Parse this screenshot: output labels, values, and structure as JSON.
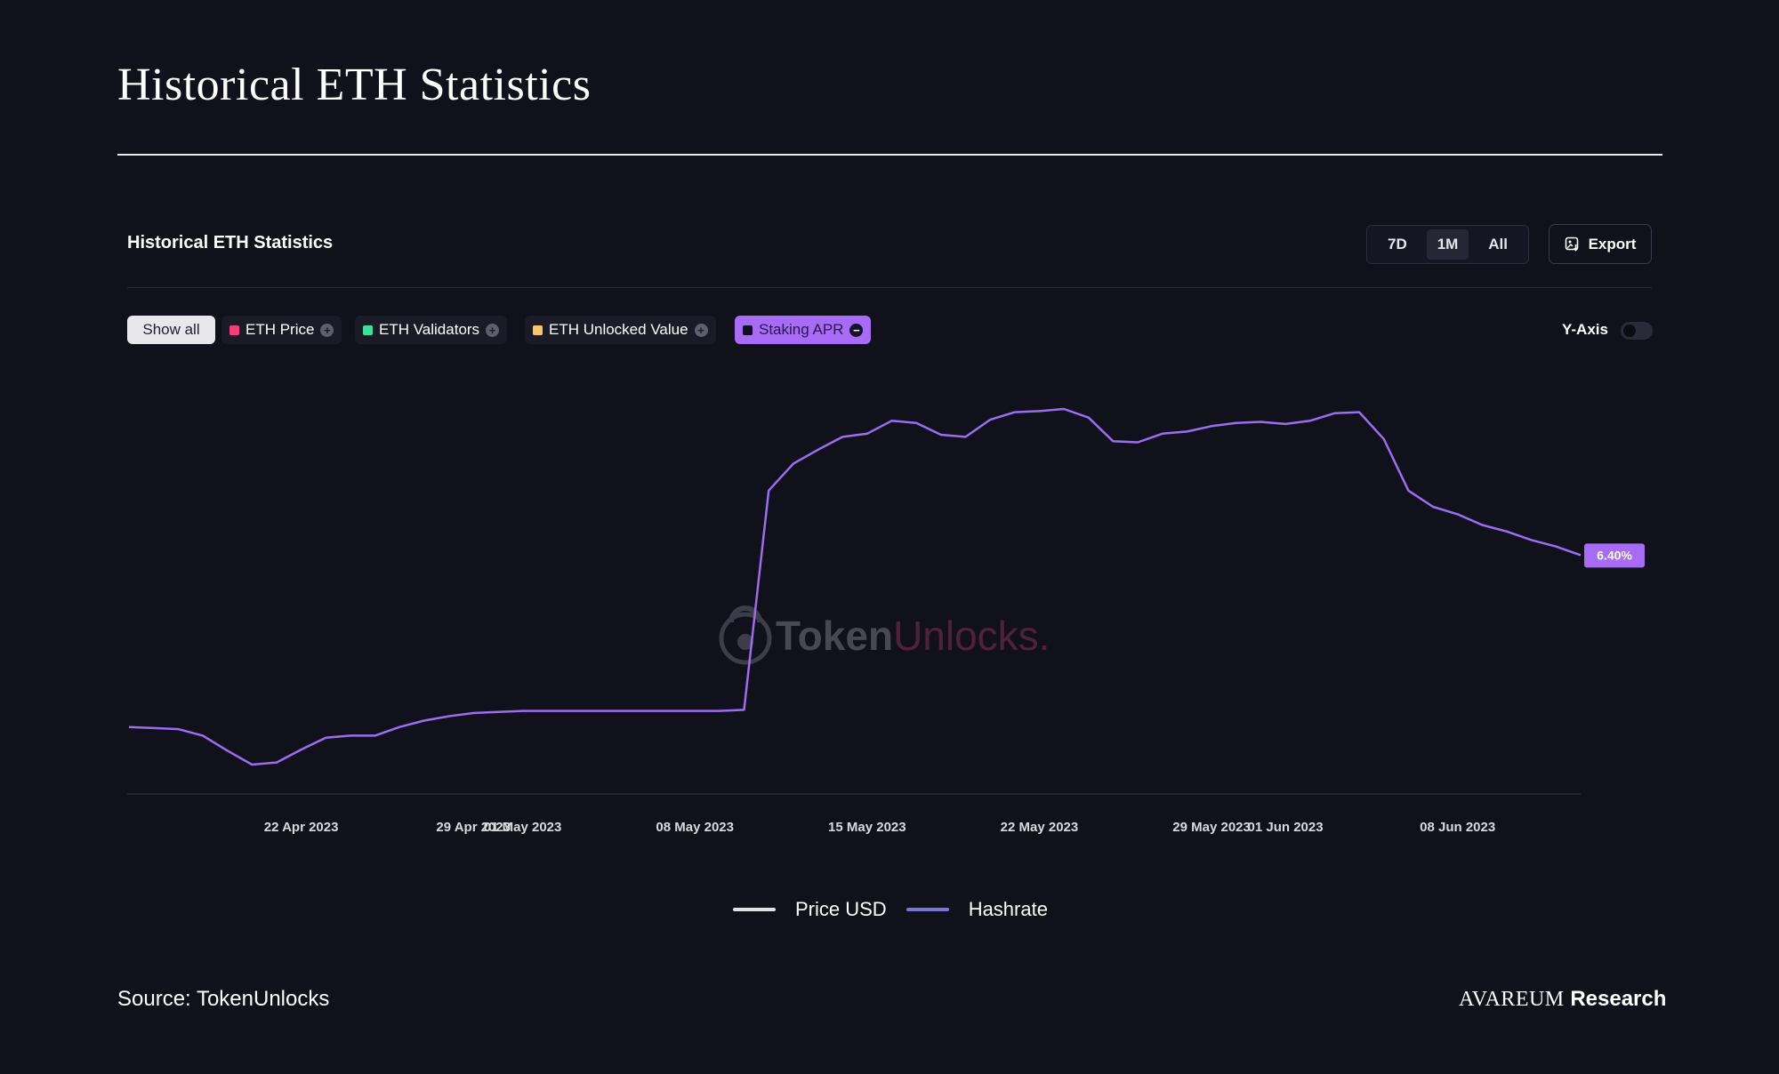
{
  "page": {
    "title": "Historical ETH Statistics",
    "source": "Source: TokenUnlocks",
    "brand_name": "AVAREUM",
    "brand_suffix": "Research"
  },
  "card": {
    "title": "Historical ETH Statistics",
    "ranges": [
      {
        "label": "7D",
        "active": false
      },
      {
        "label": "1M",
        "active": true
      },
      {
        "label": "All",
        "active": false
      }
    ],
    "export_label": "Export",
    "yaxis_label": "Y-Axis",
    "yaxis_enabled": false
  },
  "filters": {
    "show_all": "Show all",
    "chips": [
      {
        "label": "ETH Price",
        "color": "#f0407a",
        "active": false
      },
      {
        "label": "ETH Validators",
        "color": "#3be09a",
        "active": false
      },
      {
        "label": "ETH Unlocked Value",
        "color": "#f4c66a",
        "active": false
      },
      {
        "label": "Staking APR",
        "color": "#111122",
        "active": true
      }
    ]
  },
  "watermark": {
    "token": "Token",
    "unlocks": "Unlocks."
  },
  "chart_data": {
    "type": "line",
    "x_ticks": [
      "22 Apr 2023",
      "29 Apr 2023",
      "01 May 2023",
      "08 May 2023",
      "15 May 2023",
      "22 May 2023",
      "29 May 2023",
      "01 Jun 2023",
      "08 Jun 2023"
    ],
    "x_tick_days": [
      22,
      29,
      31,
      38,
      45,
      52,
      59,
      62,
      69
    ],
    "day_zero_note": "",
    "x": [
      "15 Apr 2023",
      "16 Apr 2023",
      "17 Apr 2023",
      "18 Apr 2023",
      "19 Apr 2023",
      "20 Apr 2023",
      "21 Apr 2023",
      "22 Apr 2023",
      "23 Apr 2023",
      "24 Apr 2023",
      "25 Apr 2023",
      "26 Apr 2023",
      "27 Apr 2023",
      "28 Apr 2023",
      "29 Apr 2023",
      "30 Apr 2023",
      "01 May 2023",
      "02 May 2023",
      "03 May 2023",
      "04 May 2023",
      "05 May 2023",
      "06 May 2023",
      "07 May 2023",
      "08 May 2023",
      "09 May 2023",
      "10 May 2023",
      "11 May 2023",
      "12 May 2023",
      "13 May 2023",
      "14 May 2023",
      "15 May 2023",
      "16 May 2023",
      "17 May 2023",
      "18 May 2023",
      "19 May 2023",
      "20 May 2023",
      "21 May 2023",
      "22 May 2023",
      "23 May 2023",
      "24 May 2023",
      "25 May 2023",
      "26 May 2023",
      "27 May 2023",
      "28 May 2023",
      "29 May 2023",
      "30 May 2023",
      "31 May 2023",
      "01 Jun 2023",
      "02 Jun 2023",
      "03 Jun 2023",
      "04 Jun 2023",
      "05 Jun 2023",
      "06 Jun 2023",
      "07 Jun 2023",
      "08 Jun 2023",
      "09 Jun 2023",
      "10 Jun 2023",
      "11 Jun 2023",
      "12 Jun 2023",
      "13 Jun 2023"
    ],
    "series": [
      {
        "name": "Staking APR",
        "color": "#9b6ef0",
        "values": [
          4.8,
          4.79,
          4.78,
          4.72,
          4.58,
          4.45,
          4.47,
          4.59,
          4.7,
          4.72,
          4.72,
          4.8,
          4.86,
          4.9,
          4.93,
          4.94,
          4.95,
          4.95,
          4.95,
          4.95,
          4.95,
          4.95,
          4.95,
          4.95,
          4.95,
          4.96,
          7.0,
          7.25,
          7.38,
          7.5,
          7.53,
          7.65,
          7.63,
          7.52,
          7.5,
          7.66,
          7.73,
          7.74,
          7.76,
          7.68,
          7.46,
          7.45,
          7.53,
          7.55,
          7.6,
          7.63,
          7.64,
          7.62,
          7.65,
          7.72,
          7.73,
          7.48,
          7.0,
          6.85,
          6.78,
          6.68,
          6.62,
          6.54,
          6.48,
          6.4
        ]
      }
    ],
    "end_label": "6.40%",
    "legend": [
      {
        "name": "Price USD",
        "color": "#e0e0e4"
      },
      {
        "name": "Hashrate",
        "color": "#7d74d8"
      }
    ],
    "ylim": [
      4.0,
      8.1
    ],
    "grid": false,
    "legend_position": "bottom-center",
    "xlabel": "",
    "ylabel": ""
  }
}
